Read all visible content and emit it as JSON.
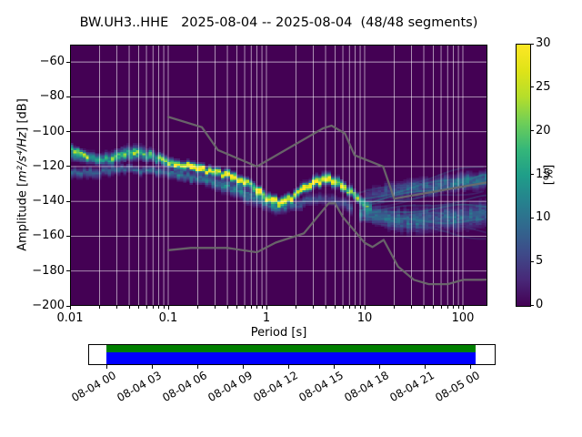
{
  "title": "BW.UH3..HHE   2025-08-04 -- 2025-08-04  (48/48 segments)",
  "station": {
    "network": "BW",
    "station": "UH3",
    "location": "",
    "channel": "HHE"
  },
  "date_range": {
    "start": "2025-08-04",
    "end": "2025-08-04"
  },
  "segments": {
    "used": "48",
    "total": "48"
  },
  "axes": {
    "xlabel": "Period [s]",
    "ylabel_prefix": "Amplitude [",
    "ylabel_math": "m²/s⁴/Hz",
    "ylabel_suffix": "] [dB]",
    "x_tick_labels": [
      "0.01",
      "0.1",
      "1",
      "10",
      "100"
    ],
    "x_tick_decades": [
      -2,
      -1,
      0,
      1,
      2
    ],
    "y_tick_labels": [
      "−60",
      "−80",
      "−100",
      "−120",
      "−140",
      "−160",
      "−180",
      "−200"
    ],
    "y_tick_values": [
      -60,
      -80,
      -100,
      -120,
      -140,
      -160,
      -180,
      -200
    ]
  },
  "colorbar": {
    "label": "[%]",
    "tick_labels": [
      "0",
      "5",
      "10",
      "15",
      "20",
      "25",
      "30"
    ],
    "tick_values": [
      0,
      5,
      10,
      15,
      20,
      25,
      30
    ],
    "min": 0,
    "max": 30
  },
  "timeline": {
    "tick_labels": [
      "08-04 00",
      "08-04 03",
      "08-04 06",
      "08-04 09",
      "08-04 12",
      "08-04 15",
      "08-04 18",
      "08-04 21",
      "08-05 00"
    ],
    "processed_color": "#008000",
    "data_color": "#0000ff"
  },
  "chart_data": {
    "type": "heatmap",
    "title": "BW.UH3..HHE   2025-08-04 -- 2025-08-04  (48/48 segments)",
    "xlabel": "Period [s]",
    "ylabel": "Amplitude [m²/s⁴/Hz] [dB]",
    "x_scale": "log",
    "xlim": [
      0.01,
      178
    ],
    "ylim": [
      -200,
      -50
    ],
    "grid": true,
    "colorbar_label": "[%]",
    "colorbar_range": [
      0,
      30
    ],
    "background_percent": 0,
    "components_format": "[period_s, mode_db, half_width_db, peak_percent]",
    "components": {
      "high_freq_edge_streak": [
        [
          0.01,
          -108.5,
          2.5,
          12
        ],
        [
          0.0125,
          -112,
          2.5,
          12
        ],
        [
          0.016,
          -116,
          2,
          8
        ]
      ],
      "main_ridge": [
        [
          0.01,
          -112,
          5,
          14
        ],
        [
          0.013,
          -114.5,
          4,
          15
        ],
        [
          0.02,
          -116,
          3.5,
          16
        ],
        [
          0.028,
          -114.5,
          4.5,
          17
        ],
        [
          0.04,
          -112.5,
          4.5,
          18
        ],
        [
          0.055,
          -112.5,
          4.5,
          17
        ],
        [
          0.07,
          -114.5,
          4,
          16
        ],
        [
          0.09,
          -117,
          3.5,
          20
        ],
        [
          0.12,
          -119,
          3,
          26
        ],
        [
          0.17,
          -120.5,
          2.8,
          30
        ],
        [
          0.25,
          -122.5,
          2.8,
          30
        ],
        [
          0.35,
          -124,
          2.8,
          30
        ],
        [
          0.45,
          -125.5,
          3,
          30
        ],
        [
          0.6,
          -128.5,
          3,
          29
        ],
        [
          0.8,
          -133.5,
          3,
          27
        ],
        [
          1.0,
          -138,
          3,
          25
        ],
        [
          1.4,
          -140.5,
          3,
          26
        ],
        [
          1.8,
          -138,
          3,
          27
        ],
        [
          2.4,
          -132,
          3.2,
          29
        ],
        [
          3.2,
          -128.5,
          3.6,
          30
        ],
        [
          4.0,
          -127,
          3.8,
          30
        ],
        [
          4.8,
          -128.5,
          3.5,
          30
        ],
        [
          6.0,
          -131.5,
          3.2,
          27
        ],
        [
          8.0,
          -136.5,
          3.2,
          21
        ],
        [
          10,
          -141.5,
          3.5,
          14
        ],
        [
          12,
          -144.5,
          4,
          9
        ]
      ],
      "secondary_band": [
        [
          0.01,
          -123.5,
          3.5,
          8
        ],
        [
          0.02,
          -123.5,
          3.5,
          8
        ],
        [
          0.04,
          -121.5,
          3,
          7
        ],
        [
          0.07,
          -122.5,
          3,
          8
        ],
        [
          0.1,
          -124,
          3.5,
          9
        ],
        [
          0.15,
          -125.5,
          3.5,
          10
        ],
        [
          0.22,
          -127.5,
          4,
          10
        ],
        [
          0.32,
          -130,
          4.5,
          10
        ],
        [
          0.45,
          -132.5,
          5,
          10
        ],
        [
          0.65,
          -136,
          5.5,
          10
        ],
        [
          0.9,
          -139.5,
          5.5,
          10
        ],
        [
          1.3,
          -143,
          5,
          9
        ],
        [
          1.9,
          -142.5,
          4,
          6
        ],
        [
          2.8,
          -139.5,
          4,
          5
        ],
        [
          4.0,
          -138.5,
          4,
          4
        ],
        [
          5.5,
          -140,
          4,
          5
        ],
        [
          7.5,
          -144,
          5,
          6
        ]
      ],
      "long_period_upper_band": [
        [
          10,
          -138,
          5,
          4
        ],
        [
          14,
          -136,
          6,
          5
        ],
        [
          20,
          -134,
          6,
          6
        ],
        [
          30,
          -132.5,
          6,
          7
        ],
        [
          50,
          -131,
          6,
          8
        ],
        [
          80,
          -129.5,
          5.5,
          9
        ],
        [
          120,
          -128.5,
          5.5,
          10
        ],
        [
          178,
          -127.5,
          5.5,
          11
        ]
      ],
      "long_period_lower_band": [
        [
          9,
          -146,
          5,
          10
        ],
        [
          12,
          -148,
          6,
          9
        ],
        [
          17,
          -150,
          7,
          8
        ],
        [
          25,
          -151,
          8,
          8
        ],
        [
          40,
          -151,
          8.5,
          8
        ],
        [
          65,
          -150,
          8.5,
          8
        ],
        [
          100,
          -148.5,
          8.5,
          8
        ],
        [
          140,
          -147.5,
          8.5,
          8
        ],
        [
          178,
          -147,
          8.5,
          8
        ]
      ]
    },
    "segment_traces_format": "[start_period_s, start_db, end_db, opacity, color]",
    "segment_traces_long_period": [
      [
        8,
        -136,
        -119,
        0.3,
        "#31688e"
      ],
      [
        9,
        -139,
        -123,
        0.4,
        "#26828e"
      ],
      [
        10,
        -141,
        -126,
        0.5,
        "#26828e"
      ],
      [
        10,
        -143,
        -129,
        0.45,
        "#31688e"
      ],
      [
        9,
        -144,
        -133,
        0.38,
        "#3e4a89"
      ],
      [
        10,
        -146,
        -138,
        0.38,
        "#31688e"
      ],
      [
        11,
        -147,
        -142,
        0.42,
        "#26828e"
      ],
      [
        10,
        -148.5,
        -147,
        0.4,
        "#31688e"
      ],
      [
        9,
        -150,
        -152,
        0.42,
        "#26828e"
      ],
      [
        10,
        -151,
        -157,
        0.35,
        "#3e4a89"
      ],
      [
        12,
        -152,
        -161,
        0.28,
        "#31688e"
      ]
    ],
    "noise_models": {
      "name": "Peterson NLNM/NHNM",
      "color": "#6b6b6b",
      "nhnm": [
        [
          0.1,
          -91.5
        ],
        [
          0.22,
          -97.4
        ],
        [
          0.32,
          -110.5
        ],
        [
          0.8,
          -120
        ],
        [
          3.8,
          -98
        ],
        [
          4.6,
          -96.5
        ],
        [
          6.3,
          -101
        ],
        [
          7.9,
          -113.5
        ],
        [
          15.4,
          -120
        ],
        [
          20,
          -138.5
        ],
        [
          178,
          -129
        ]
      ],
      "nlnm": [
        [
          0.1,
          -168
        ],
        [
          0.17,
          -166.7
        ],
        [
          0.4,
          -166.7
        ],
        [
          0.8,
          -169.2
        ],
        [
          1.24,
          -163.7
        ],
        [
          2.4,
          -158.4
        ],
        [
          4.3,
          -141.1
        ],
        [
          5.0,
          -141.1
        ],
        [
          6.0,
          -149
        ],
        [
          10,
          -163.8
        ],
        [
          12,
          -166.2
        ],
        [
          15.6,
          -162.1
        ],
        [
          21.9,
          -177.5
        ],
        [
          31.6,
          -185
        ],
        [
          45,
          -187.5
        ],
        [
          70,
          -187.5
        ],
        [
          101,
          -185
        ],
        [
          154,
          -185
        ],
        [
          178,
          -184.9
        ]
      ]
    },
    "viridis_stops": [
      [
        0.0,
        "#440154"
      ],
      [
        0.1,
        "#482878"
      ],
      [
        0.2,
        "#3e4a89"
      ],
      [
        0.3,
        "#31688e"
      ],
      [
        0.4,
        "#26828e"
      ],
      [
        0.5,
        "#1f9e89"
      ],
      [
        0.6,
        "#35b779"
      ],
      [
        0.7,
        "#6ece58"
      ],
      [
        0.8,
        "#b5de2b"
      ],
      [
        0.9,
        "#dfe318"
      ],
      [
        1.0,
        "#fde725"
      ]
    ],
    "grid_color": "rgba(255,255,255,0.62)"
  }
}
